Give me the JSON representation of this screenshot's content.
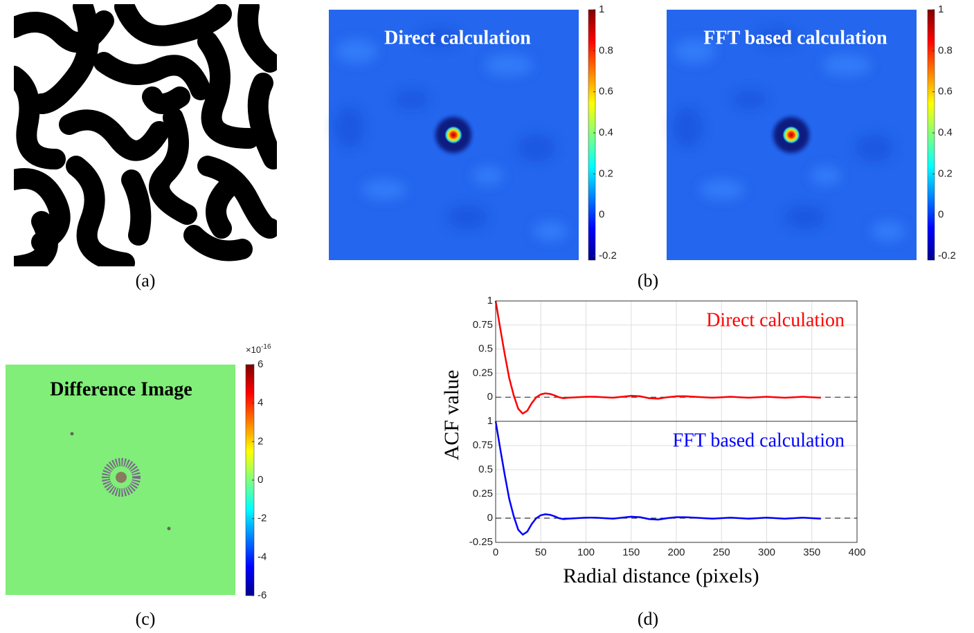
{
  "panel_labels": [
    "(a)",
    "(b)",
    "(c)",
    "(d)"
  ],
  "ylabel": "ACF value",
  "xlabel": "Radial distance (pixels)",
  "chart_data": [
    {
      "type": "colorbar",
      "title": "Direct calculation",
      "colormap": "jet",
      "ylim": [
        -0.22,
        1
      ],
      "yticks": [
        -0.2,
        0,
        0.2,
        0.4,
        0.6,
        0.8,
        1
      ]
    },
    {
      "type": "colorbar",
      "title": "FFT based calculation",
      "colormap": "jet",
      "ylim": [
        -0.22,
        1
      ],
      "yticks": [
        -0.2,
        0,
        0.2,
        0.4,
        0.6,
        0.8,
        1
      ]
    },
    {
      "type": "colorbar",
      "title": "Difference Image",
      "colormap": "jet",
      "scale_base": "×10",
      "scale_exponent": "-16",
      "ylim": [
        -6,
        6
      ],
      "yticks": [
        -6,
        -4,
        -2,
        0,
        2,
        4,
        6
      ]
    },
    {
      "type": "line",
      "title": "Direct calculation",
      "title_color": "#ff0000",
      "grid": true,
      "x": [
        0,
        5,
        10,
        15,
        20,
        25,
        30,
        35,
        40,
        45,
        50,
        55,
        60,
        65,
        70,
        75,
        80,
        90,
        100,
        110,
        120,
        130,
        140,
        150,
        160,
        170,
        180,
        190,
        200,
        210,
        220,
        230,
        240,
        250,
        260,
        270,
        280,
        290,
        300,
        310,
        320,
        330,
        340,
        350,
        360
      ],
      "series": [
        {
          "color": "#ff0000",
          "values": [
            1,
            0.72,
            0.45,
            0.2,
            0.02,
            -0.12,
            -0.17,
            -0.14,
            -0.06,
            0,
            0.03,
            0.04,
            0.035,
            0.02,
            0,
            -0.01,
            -0.005,
            0,
            0.005,
            0.005,
            0,
            -0.005,
            0.005,
            0.015,
            0.01,
            -0.01,
            -0.015,
            0,
            0.01,
            0.01,
            0.005,
            0,
            -0.005,
            0,
            0.005,
            0,
            -0.005,
            0,
            0.005,
            0,
            -0.005,
            0,
            0.005,
            0,
            -0.005
          ]
        }
      ],
      "xlim": [
        0,
        400
      ],
      "xticks": [
        0,
        50,
        100,
        150,
        200,
        250,
        300,
        350,
        400
      ],
      "ylim": [
        -0.25,
        1
      ],
      "yticks": [
        0,
        0.25,
        0.5,
        0.75,
        1
      ]
    },
    {
      "type": "line",
      "title": "FFT based calculation",
      "title_color": "#0000ff",
      "grid": true,
      "x": [
        0,
        5,
        10,
        15,
        20,
        25,
        30,
        35,
        40,
        45,
        50,
        55,
        60,
        65,
        70,
        75,
        80,
        90,
        100,
        110,
        120,
        130,
        140,
        150,
        160,
        170,
        180,
        190,
        200,
        210,
        220,
        230,
        240,
        250,
        260,
        270,
        280,
        290,
        300,
        310,
        320,
        330,
        340,
        350,
        360
      ],
      "series": [
        {
          "color": "#0000ff",
          "values": [
            1,
            0.72,
            0.45,
            0.2,
            0.02,
            -0.12,
            -0.17,
            -0.14,
            -0.06,
            0,
            0.03,
            0.04,
            0.035,
            0.02,
            0,
            -0.01,
            -0.005,
            0,
            0.005,
            0.005,
            0,
            -0.005,
            0.005,
            0.015,
            0.01,
            -0.01,
            -0.015,
            0,
            0.01,
            0.01,
            0.005,
            0,
            -0.005,
            0,
            0.005,
            0,
            -0.005,
            0,
            0.005,
            0,
            -0.005,
            0,
            0.005,
            0,
            -0.005
          ]
        }
      ],
      "xlim": [
        0,
        400
      ],
      "xticks": [
        0,
        50,
        100,
        150,
        200,
        250,
        300,
        350,
        400
      ],
      "ylim": [
        -0.25,
        1
      ],
      "yticks": [
        -0.25,
        0,
        0.25,
        0.5,
        0.75,
        1
      ]
    }
  ]
}
